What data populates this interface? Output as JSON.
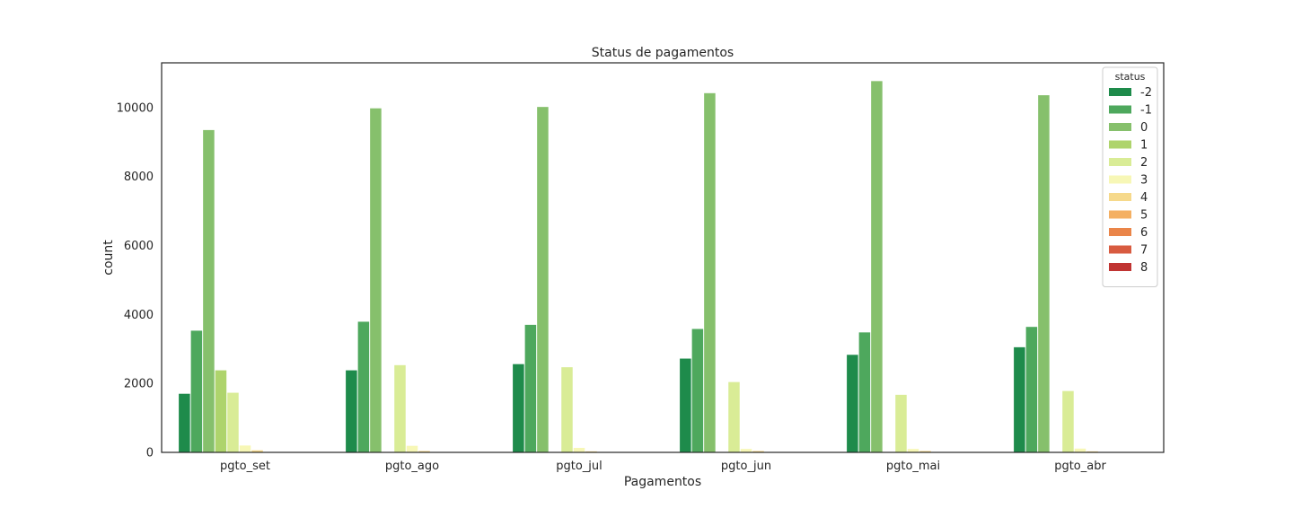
{
  "chart_data": {
    "type": "bar",
    "title": "Status de pagamentos",
    "xlabel": "Pagamentos",
    "ylabel": "count",
    "categories": [
      "pgto_set",
      "pgto_ago",
      "pgto_jul",
      "pgto_jun",
      "pgto_mai",
      "pgto_abr"
    ],
    "ylim": [
      0,
      11300
    ],
    "yticks": [
      0,
      2000,
      4000,
      6000,
      8000,
      10000
    ],
    "grid": false,
    "legend": {
      "title": "status",
      "position": "top-right"
    },
    "series": [
      {
        "name": "-2",
        "color": "#1e8b4b",
        "values": [
          1700,
          2380,
          2560,
          2720,
          2830,
          3050
        ]
      },
      {
        "name": "-1",
        "color": "#4ea85d",
        "values": [
          3530,
          3790,
          3700,
          3580,
          3480,
          3640
        ]
      },
      {
        "name": "0",
        "color": "#86c06c",
        "values": [
          9350,
          9980,
          10020,
          10420,
          10770,
          10360
        ]
      },
      {
        "name": "1",
        "color": "#aed46c",
        "values": [
          2380,
          0,
          0,
          0,
          0,
          0
        ]
      },
      {
        "name": "2",
        "color": "#d9ec96",
        "values": [
          1730,
          2530,
          2470,
          2040,
          1670,
          1780
        ]
      },
      {
        "name": "3",
        "color": "#f7f7b6",
        "values": [
          200,
          190,
          130,
          100,
          100,
          110
        ]
      },
      {
        "name": "4",
        "color": "#f6d98b",
        "values": [
          60,
          40,
          30,
          40,
          40,
          30
        ]
      },
      {
        "name": "5",
        "color": "#f4b063",
        "values": [
          10,
          10,
          10,
          10,
          10,
          10
        ]
      },
      {
        "name": "6",
        "color": "#ea8549",
        "values": [
          10,
          5,
          5,
          5,
          5,
          5
        ]
      },
      {
        "name": "7",
        "color": "#d85b40",
        "values": [
          10,
          5,
          5,
          5,
          5,
          5
        ]
      },
      {
        "name": "8",
        "color": "#c03432",
        "values": [
          5,
          5,
          5,
          5,
          5,
          5
        ]
      }
    ]
  }
}
